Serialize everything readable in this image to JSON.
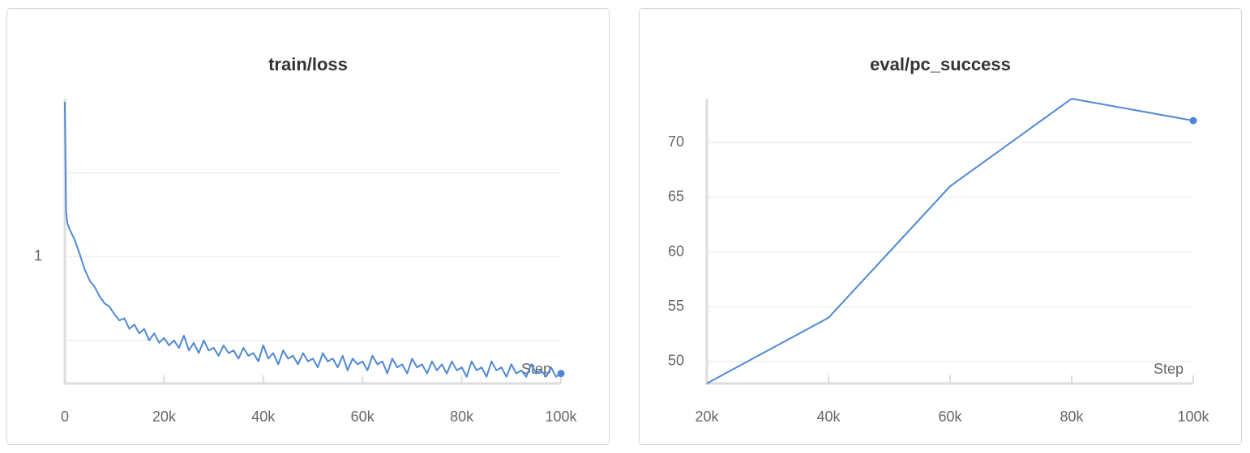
{
  "chart_data": [
    {
      "type": "line",
      "title": "train/loss",
      "x_label": "Step",
      "ylog": true,
      "grid": true,
      "color": "#4f88d3",
      "xlim": [
        0,
        100000
      ],
      "xticks": [
        0,
        {
          "value": 20000,
          "label": "20k"
        },
        {
          "value": 40000,
          "label": "40k"
        },
        {
          "value": 60000,
          "label": "60k"
        },
        {
          "value": 80000,
          "label": "80k"
        },
        {
          "value": 100000,
          "label": "100k"
        }
      ],
      "ylim": [
        0.35,
        3.7
      ],
      "yticks": [
        1
      ],
      "minor_yticks": [
        0.5,
        2
      ],
      "x": [
        0,
        250,
        500,
        1000,
        2000,
        3000,
        4000,
        5000,
        6000,
        7000,
        8000,
        9000,
        10000,
        11000,
        12000,
        13000,
        14000,
        15000,
        16000,
        17000,
        18000,
        19000,
        20000,
        21000,
        22000,
        23000,
        24000,
        25000,
        26000,
        27000,
        28000,
        29000,
        30000,
        31000,
        32000,
        33000,
        34000,
        35000,
        36000,
        37000,
        38000,
        39000,
        40000,
        41000,
        42000,
        43000,
        44000,
        45000,
        46000,
        47000,
        48000,
        49000,
        50000,
        51000,
        52000,
        53000,
        54000,
        55000,
        56000,
        57000,
        58000,
        59000,
        60000,
        61000,
        62000,
        63000,
        64000,
        65000,
        66000,
        67000,
        68000,
        69000,
        70000,
        71000,
        72000,
        73000,
        74000,
        75000,
        76000,
        77000,
        78000,
        79000,
        80000,
        81000,
        82000,
        83000,
        84000,
        85000,
        86000,
        87000,
        88000,
        89000,
        90000,
        91000,
        92000,
        93000,
        94000,
        95000,
        96000,
        97000,
        98000,
        99000,
        100000
      ],
      "values": [
        3.6,
        1.45,
        1.32,
        1.25,
        1.15,
        1.02,
        0.9,
        0.82,
        0.78,
        0.72,
        0.68,
        0.66,
        0.62,
        0.59,
        0.6,
        0.55,
        0.57,
        0.53,
        0.55,
        0.5,
        0.53,
        0.49,
        0.51,
        0.48,
        0.5,
        0.47,
        0.52,
        0.46,
        0.49,
        0.45,
        0.5,
        0.46,
        0.47,
        0.44,
        0.48,
        0.45,
        0.46,
        0.43,
        0.47,
        0.44,
        0.45,
        0.42,
        0.48,
        0.43,
        0.45,
        0.41,
        0.46,
        0.43,
        0.44,
        0.41,
        0.45,
        0.42,
        0.43,
        0.4,
        0.45,
        0.42,
        0.43,
        0.4,
        0.44,
        0.39,
        0.43,
        0.41,
        0.42,
        0.39,
        0.44,
        0.41,
        0.42,
        0.38,
        0.43,
        0.4,
        0.41,
        0.38,
        0.43,
        0.4,
        0.41,
        0.38,
        0.42,
        0.39,
        0.41,
        0.38,
        0.42,
        0.39,
        0.4,
        0.37,
        0.42,
        0.39,
        0.4,
        0.37,
        0.42,
        0.39,
        0.4,
        0.37,
        0.41,
        0.38,
        0.39,
        0.37,
        0.41,
        0.38,
        0.39,
        0.37,
        0.4,
        0.37,
        0.38
      ]
    },
    {
      "type": "line",
      "title": "eval/pc_success",
      "x_label": "Step",
      "ylog": false,
      "grid": true,
      "color": "#4f88d3",
      "xlim": [
        20000,
        100000
      ],
      "xticks": [
        {
          "value": 20000,
          "label": "20k"
        },
        {
          "value": 40000,
          "label": "40k"
        },
        {
          "value": 60000,
          "label": "60k"
        },
        {
          "value": 80000,
          "label": "80k"
        },
        {
          "value": 100000,
          "label": "100k"
        }
      ],
      "ylim": [
        48,
        74
      ],
      "yticks": [
        50,
        55,
        60,
        65,
        70
      ],
      "x": [
        20000,
        40000,
        60000,
        80000,
        100000
      ],
      "values": [
        48,
        54,
        66,
        74,
        72
      ]
    }
  ]
}
